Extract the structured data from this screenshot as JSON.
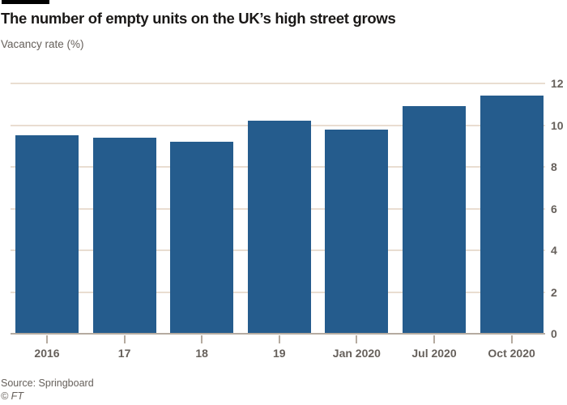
{
  "header": {
    "title": "The number of empty units on the UK’s high street grows",
    "subtitle": "Vacancy rate (%)"
  },
  "chart_data": {
    "type": "bar",
    "categories": [
      "2016",
      "17",
      "18",
      "19",
      "Jan 2020",
      "Jul 2020",
      "Oct 2020"
    ],
    "values": [
      9.5,
      9.4,
      9.2,
      10.2,
      9.8,
      10.9,
      11.4
    ],
    "title": "The number of empty units on the UK’s high street grows",
    "xlabel": "",
    "ylabel": "Vacancy rate (%)",
    "ylim": [
      0,
      12
    ],
    "yticks": [
      0,
      2,
      4,
      6,
      8,
      10,
      12
    ],
    "ytick_side": "right",
    "grid": true,
    "legend": "none",
    "colors": {
      "bar": "#255C8D",
      "gridline": "#E9DDD1",
      "axis": "#B5ABA0",
      "tick_label": "#66605B",
      "title_text": "#1A1817",
      "top_rule": "#000000"
    }
  },
  "footer": {
    "source": "Source: Springboard",
    "copyright": "© FT"
  }
}
